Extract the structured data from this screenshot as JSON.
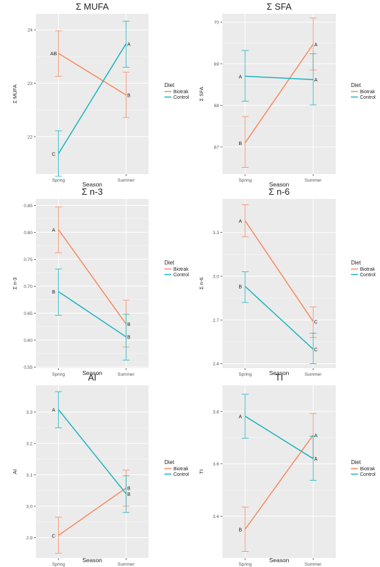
{
  "colors": {
    "Biotrak": "#F8875A",
    "Control": "#1AB3BE",
    "panel": "#EBEBEB",
    "grid": "#FFFFFF",
    "text": "#222222",
    "axis": "#555555"
  },
  "legend_title": "Diet",
  "chart_data": [
    {
      "type": "line",
      "title": "Σ MUFA",
      "xlabel": "Season",
      "ylabel": "Σ MUFA",
      "categories": [
        "Spring",
        "Summer"
      ],
      "ylim": [
        21.3,
        24.3
      ],
      "yticks": [
        22,
        23,
        24
      ],
      "ytick_labels": [
        "22",
        "23",
        "24"
      ],
      "legend": {
        "title": "Diet",
        "entries": [
          "Biotrak",
          "Control"
        ],
        "position": "right"
      },
      "series": [
        {
          "name": "Biotrak",
          "values": [
            23.56,
            22.78
          ],
          "err_low": [
            23.13,
            22.36
          ],
          "err_high": [
            23.98,
            23.21
          ],
          "labels": [
            "AB",
            "B"
          ]
        },
        {
          "name": "Control",
          "values": [
            21.68,
            23.74
          ],
          "err_low": [
            21.26,
            23.3
          ],
          "err_high": [
            22.11,
            24.16
          ],
          "labels": [
            "C",
            "A"
          ]
        }
      ]
    },
    {
      "type": "line",
      "title": "Σ SFA",
      "xlabel": "Season",
      "ylabel": "Σ SFA",
      "categories": [
        "Spring",
        "Summer"
      ],
      "ylim": [
        66.35,
        70.2
      ],
      "yticks": [
        67,
        68,
        69,
        70
      ],
      "ytick_labels": [
        "67",
        "68",
        "69",
        "70"
      ],
      "legend": {
        "title": "Diet",
        "entries": [
          "Biotrak",
          "Control"
        ],
        "position": "right"
      },
      "series": [
        {
          "name": "Biotrak",
          "values": [
            67.1,
            69.47
          ],
          "err_low": [
            66.51,
            68.85
          ],
          "err_high": [
            67.73,
            70.1
          ],
          "labels": [
            "B",
            "A"
          ]
        },
        {
          "name": "Control",
          "values": [
            68.7,
            68.62
          ],
          "err_low": [
            68.1,
            68.01
          ],
          "err_high": [
            69.32,
            69.24
          ],
          "labels": [
            "A",
            "A"
          ]
        }
      ]
    },
    {
      "type": "line",
      "title": "Σ n-3",
      "xlabel": "Season",
      "ylabel": "Σ n-3",
      "categories": [
        "Spring",
        "Summer"
      ],
      "ylim": [
        0.548,
        0.862
      ],
      "yticks": [
        0.55,
        0.6,
        0.65,
        0.7,
        0.75,
        0.8,
        0.85
      ],
      "ytick_labels": [
        "0.55",
        "0.60",
        "0.65",
        "0.70",
        "0.75",
        "0.80",
        "0.85"
      ],
      "legend": {
        "title": "Diet",
        "entries": [
          "Biotrak",
          "Control"
        ],
        "position": "right"
      },
      "series": [
        {
          "name": "Biotrak",
          "values": [
            0.805,
            0.63
          ],
          "err_low": [
            0.762,
            0.587
          ],
          "err_high": [
            0.847,
            0.674
          ],
          "labels": [
            "A",
            "B"
          ]
        },
        {
          "name": "Control",
          "values": [
            0.69,
            0.606
          ],
          "err_low": [
            0.646,
            0.563
          ],
          "err_high": [
            0.732,
            0.648
          ],
          "labels": [
            "B",
            "B"
          ]
        }
      ]
    },
    {
      "type": "line",
      "title": "Σ n-6",
      "xlabel": "Season",
      "ylabel": "Σ n-6",
      "categories": [
        "Spring",
        "Summer"
      ],
      "ylim": [
        2.37,
        3.53
      ],
      "yticks": [
        2.4,
        2.7,
        3.0,
        3.3
      ],
      "ytick_labels": [
        "2.4",
        "2.7",
        "3.0",
        "3.3"
      ],
      "legend": {
        "title": "Diet",
        "entries": [
          "Biotrak",
          "Control"
        ],
        "position": "right"
      },
      "series": [
        {
          "name": "Biotrak",
          "values": [
            3.38,
            2.69
          ],
          "err_low": [
            3.27,
            2.58
          ],
          "err_high": [
            3.49,
            2.79
          ],
          "labels": [
            "A",
            "C"
          ]
        },
        {
          "name": "Control",
          "values": [
            2.93,
            2.5
          ],
          "err_low": [
            2.82,
            2.4
          ],
          "err_high": [
            3.03,
            2.61
          ],
          "labels": [
            "B",
            "C"
          ]
        }
      ]
    },
    {
      "type": "line",
      "title": "AI",
      "xlabel": "Season",
      "ylabel": "AI",
      "categories": [
        "Spring",
        "Summer"
      ],
      "ylim": [
        2.835,
        3.385
      ],
      "yticks": [
        2.9,
        3.0,
        3.1,
        3.2,
        3.3
      ],
      "ytick_labels": [
        "2.9",
        "3.0",
        "3.1",
        "3.2",
        "3.3"
      ],
      "legend": {
        "title": "Diet",
        "entries": [
          "Biotrak",
          "Control"
        ],
        "position": "right"
      },
      "series": [
        {
          "name": "Biotrak",
          "values": [
            2.907,
            3.058
          ],
          "err_low": [
            2.85,
            3.0
          ],
          "err_high": [
            2.965,
            3.115
          ],
          "labels": [
            "C",
            "B"
          ]
        },
        {
          "name": "Control",
          "values": [
            3.308,
            3.04
          ],
          "err_low": [
            3.25,
            2.98
          ],
          "err_high": [
            3.365,
            3.097
          ],
          "labels": [
            "A",
            "B"
          ]
        }
      ]
    },
    {
      "type": "line",
      "title": "TI",
      "xlabel": "Season",
      "ylabel": "TI",
      "categories": [
        "Spring",
        "Summer"
      ],
      "ylim": [
        3.24,
        3.9
      ],
      "yticks": [
        3.4,
        3.6,
        3.8
      ],
      "ytick_labels": [
        "3.4",
        "3.6",
        "3.8"
      ],
      "legend": {
        "title": "Diet",
        "entries": [
          "Biotrak",
          "Control"
        ],
        "position": "right"
      },
      "series": [
        {
          "name": "Biotrak",
          "values": [
            3.35,
            3.71
          ],
          "err_low": [
            3.265,
            3.625
          ],
          "err_high": [
            3.435,
            3.792
          ],
          "labels": [
            "B",
            "A"
          ]
        },
        {
          "name": "Control",
          "values": [
            3.782,
            3.62
          ],
          "err_low": [
            3.698,
            3.537
          ],
          "err_high": [
            3.866,
            3.706
          ],
          "labels": [
            "A",
            "A"
          ]
        }
      ]
    }
  ]
}
